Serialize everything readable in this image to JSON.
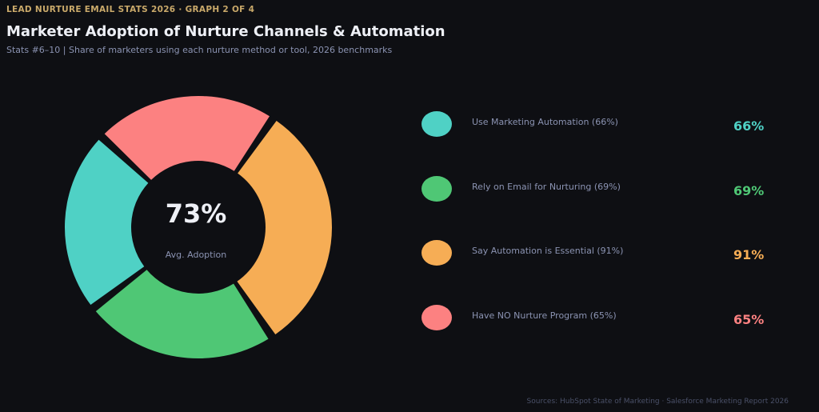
{
  "header": {
    "eyebrow": "LEAD NURTURE EMAIL STATS 2026  ·  GRAPH 2 OF 4",
    "title": "Marketer Adoption of Nurture Channels & Automation",
    "subtitle": "Stats #6–10 | Share of marketers using each nurture method or tool, 2026 benchmarks"
  },
  "center": {
    "value": "73%",
    "label": "Avg. Adoption"
  },
  "legend": [
    {
      "label": "Use Marketing Automation (66%)",
      "value": "66%",
      "color": "#4fd1c5"
    },
    {
      "label": "Rely on Email for Nurturing (69%)",
      "value": "69%",
      "color": "#4fc775"
    },
    {
      "label": "Say Automation is Essential (91%)",
      "value": "91%",
      "color": "#f6ad55"
    },
    {
      "label": "Have NO Nurture Program (65%)",
      "value": "65%",
      "color": "#fc8181"
    }
  ],
  "footer": {
    "source": "Sources: HubSpot State of Marketing · Salesforce Marketing Report 2026"
  },
  "chart_data": {
    "type": "pie",
    "donut": true,
    "categories": [
      "Use Marketing Automation (66%)",
      "Rely on Email for Nurturing (69%)",
      "Say Automation is Essential (91%)",
      "Have NO Nurture Program (65%)"
    ],
    "values": [
      66,
      69,
      91,
      65
    ],
    "colors": [
      "#4fd1c5",
      "#4fc775",
      "#f6ad55",
      "#fc8181"
    ],
    "center_value": 73,
    "center_label": "Avg. Adoption",
    "legend": "right"
  }
}
